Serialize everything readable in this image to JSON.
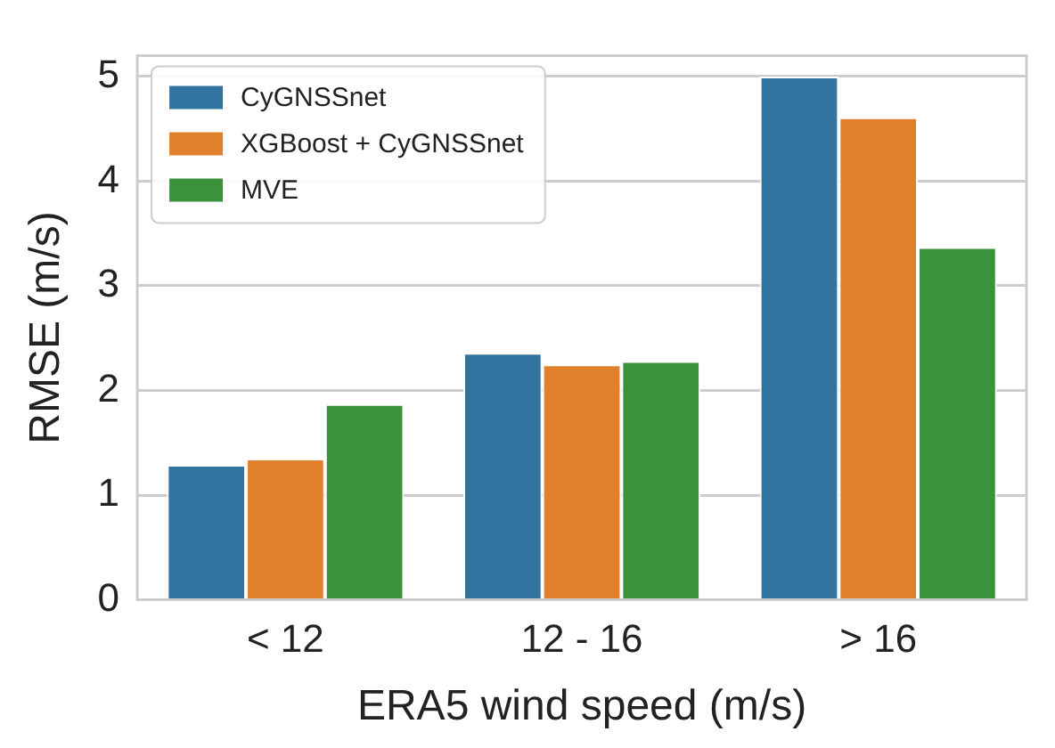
{
  "chart_data": {
    "type": "bar",
    "xlabel": "ERA5 wind speed (m/s)",
    "ylabel": "RMSE (m/s)",
    "categories": [
      "< 12",
      "12 - 16",
      "> 16"
    ],
    "series": [
      {
        "name": "CyGNSSnet",
        "color": "#3274a1",
        "values": [
          1.29,
          2.36,
          5.0
        ]
      },
      {
        "name": "XGBoost + CyGNSSnet",
        "color": "#e1812c",
        "values": [
          1.35,
          2.25,
          4.61
        ]
      },
      {
        "name": "MVE",
        "color": "#3a923a",
        "values": [
          1.87,
          2.28,
          3.37
        ]
      }
    ],
    "ylim": [
      0,
      5.2
    ],
    "yticks": [
      0,
      1,
      2,
      3,
      4,
      5
    ],
    "grid": "y",
    "legend": "top left"
  }
}
